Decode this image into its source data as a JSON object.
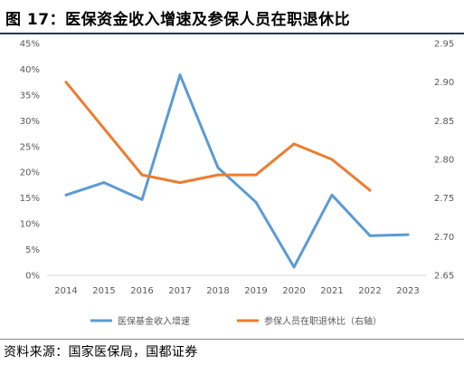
{
  "figure": {
    "title": "图 17：医保资金收入增速及参保人员在职退休比",
    "source": "资料来源：国家医保局，国都证券"
  },
  "colors": {
    "series_growth": "#5b9bd5",
    "series_ratio": "#ed7d31",
    "axis_text": "#595959",
    "title_rule": "#1f3864"
  },
  "chart_data": {
    "type": "line",
    "title": "",
    "x": [
      "2014",
      "2015",
      "2016",
      "2017",
      "2018",
      "2019",
      "2020",
      "2021",
      "2022",
      "2023"
    ],
    "y_left": {
      "ylim": [
        0,
        45
      ],
      "ticks": [
        "0%",
        "5%",
        "10%",
        "15%",
        "20%",
        "25%",
        "30%",
        "35%",
        "40%",
        "45%"
      ]
    },
    "y_right": {
      "ylim": [
        2.65,
        2.95
      ],
      "ticks": [
        "2.65",
        "2.70",
        "2.75",
        "2.80",
        "2.85",
        "2.90",
        "2.95"
      ]
    },
    "grid": false,
    "legend_position": "bottom",
    "series": [
      {
        "name": "医保基金收入增速",
        "axis": "left",
        "unit": "%",
        "values": [
          15.6,
          18.0,
          14.7,
          38.9,
          20.9,
          14.2,
          1.6,
          15.6,
          7.7,
          7.9
        ]
      },
      {
        "name": "参保人员在职退休比（右轴）",
        "axis": "right",
        "values": [
          2.9,
          2.84,
          2.78,
          2.77,
          2.78,
          2.78,
          2.82,
          2.8,
          2.76,
          null
        ]
      }
    ]
  }
}
